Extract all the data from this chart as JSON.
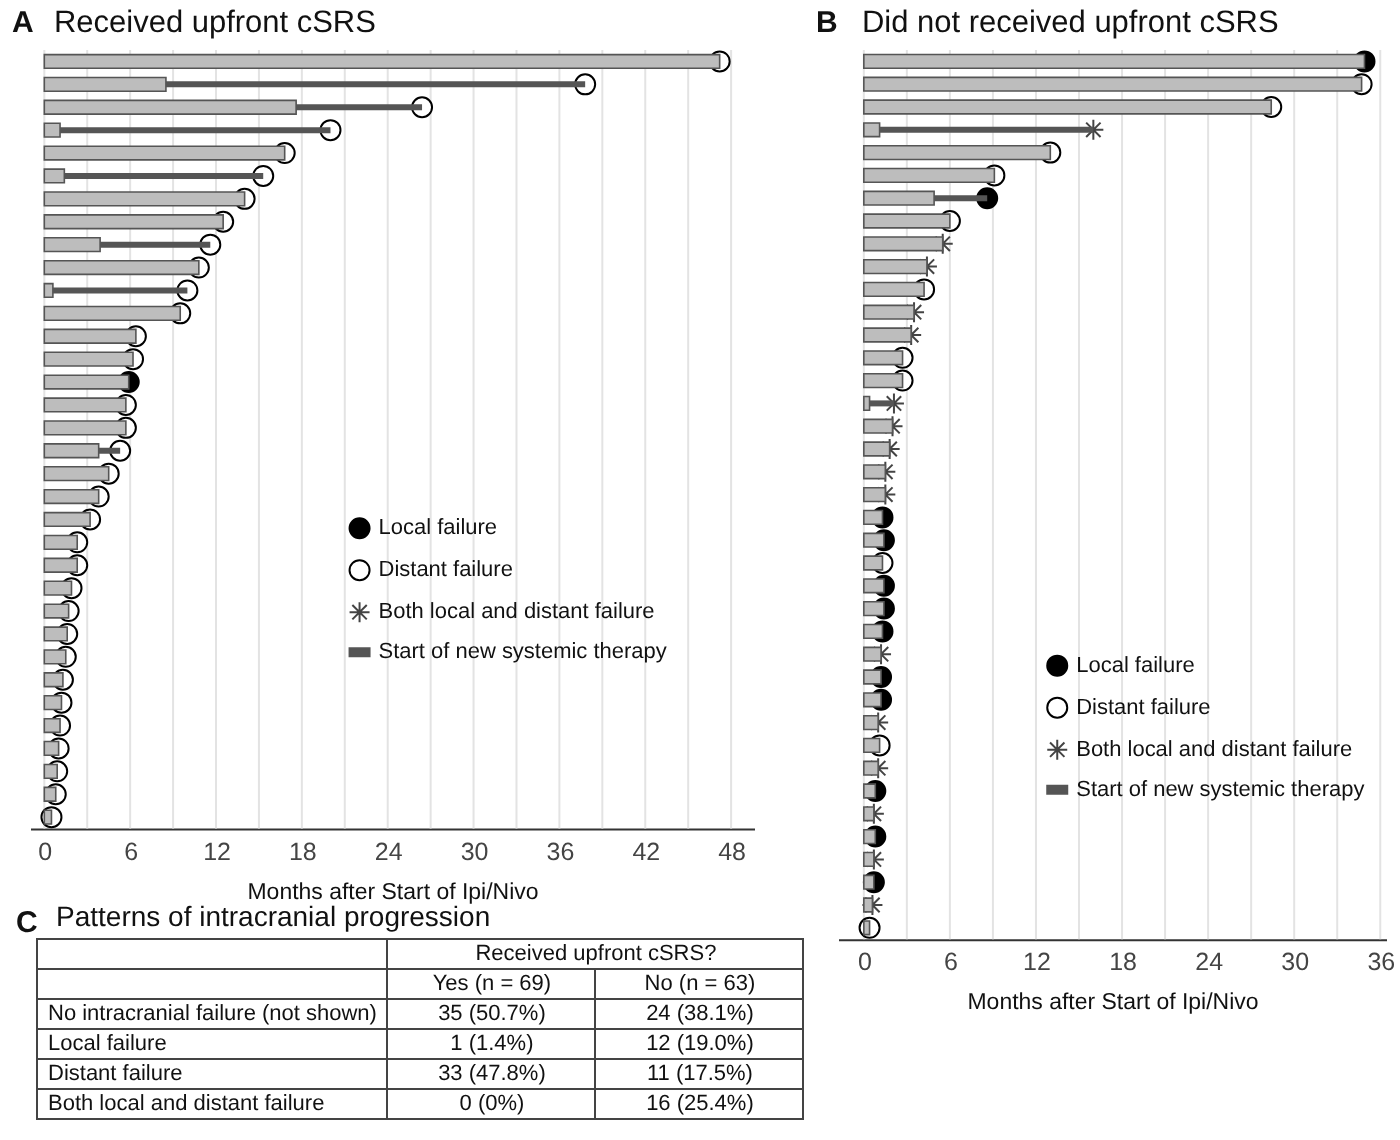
{
  "chart_data": [
    {
      "type": "bar",
      "orientation": "horizontal",
      "stacked": true,
      "title": "Received upfront cSRS",
      "xlabel": "Months after Start of Ipi/Nivo",
      "annotations": [
        "A"
      ],
      "grid": "x",
      "legend": "right",
      "categories": [
        null,
        null,
        null,
        null,
        null,
        null,
        null,
        null,
        null,
        null,
        null,
        null,
        null,
        null,
        null,
        null,
        null,
        null,
        null,
        null,
        null,
        null,
        null,
        null,
        null,
        null,
        null,
        null,
        null,
        null,
        null,
        null,
        null,
        null
      ],
      "xlim": [
        -1,
        49.6
      ],
      "xticks": [
        0,
        {
          "value": 3,
          "label": null
        },
        6,
        {
          "value": 9,
          "label": null
        },
        12,
        {
          "value": 15,
          "label": null
        },
        18,
        {
          "value": 21,
          "label": null
        },
        24,
        {
          "value": 27,
          "label": null
        },
        30,
        {
          "value": 33,
          "label": null
        },
        36,
        {
          "value": 39,
          "label": null
        },
        42,
        {
          "value": 45,
          "label": null
        },
        48
      ],
      "series": [
        {
          "type": "bar",
          "color": "#bdbdbd",
          "values": [
            47.2,
            8.5,
            17.6,
            1.1,
            16.8,
            1.4,
            14.0,
            12.5,
            3.9,
            10.8,
            0.6,
            9.5,
            6.4,
            6.2,
            5.9,
            5.7,
            5.7,
            3.8,
            4.5,
            3.8,
            3.2,
            2.3,
            2.3,
            1.9,
            1.7,
            1.6,
            1.5,
            1.3,
            1.2,
            1.1,
            1.0,
            0.9,
            0.8,
            0.5
          ]
        },
        {
          "type": "scatter",
          "name": "Local failure",
          "color": "#000000",
          "marker": "circle",
          "values": [
            null,
            null,
            null,
            null,
            null,
            null,
            null,
            null,
            null,
            null,
            null,
            null,
            null,
            null,
            5.9,
            null,
            null,
            null,
            null,
            null,
            null,
            null,
            null,
            null,
            null,
            null,
            null,
            null,
            null,
            null,
            null,
            null,
            null,
            null
          ]
        },
        {
          "type": "scatter",
          "name": "Distant failure",
          "color": "#ffffff",
          "marker": "circle",
          "values": [
            47.2,
            37.8,
            26.4,
            20.0,
            16.8,
            15.3,
            14.0,
            12.5,
            11.6,
            10.8,
            10.0,
            9.5,
            6.4,
            6.2,
            null,
            5.7,
            5.7,
            5.3,
            4.5,
            3.8,
            3.2,
            2.3,
            2.3,
            1.9,
            1.7,
            1.6,
            1.5,
            1.3,
            1.2,
            1.1,
            1.0,
            0.9,
            0.8,
            0.5
          ]
        },
        {
          "type": "scatter",
          "name": "Both local and distant failure",
          "color": "#444444",
          "marker": "cross",
          "values": [
            null,
            null,
            null,
            null,
            null,
            null,
            null,
            null,
            null,
            null,
            null,
            null,
            null,
            null,
            null,
            null,
            null,
            null,
            null,
            null,
            null,
            null,
            null,
            null,
            null,
            null,
            null,
            null,
            null,
            null,
            null,
            null,
            null,
            null
          ]
        },
        {
          "type": "bar",
          "name": "Start of new systemic therapy",
          "color": "#555555",
          "values": [
            null,
            29.3,
            8.8,
            18.9,
            null,
            13.9,
            null,
            null,
            7.7,
            null,
            9.4,
            null,
            null,
            null,
            null,
            null,
            null,
            1.5,
            null,
            null,
            null,
            null,
            null,
            null,
            null,
            null,
            null,
            null,
            null,
            null,
            null,
            null,
            null,
            null
          ]
        }
      ]
    },
    {
      "type": "bar",
      "orientation": "horizontal",
      "stacked": true,
      "title": "Did not received upfront cSRS",
      "xlabel": "Months after Start of Ipi/Nivo",
      "annotations": [
        "B"
      ],
      "grid": "x",
      "legend": "bottom right",
      "categories": [
        null,
        null,
        null,
        null,
        null,
        null,
        null,
        null,
        null,
        null,
        null,
        null,
        null,
        null,
        null,
        null,
        null,
        null,
        null,
        null,
        null,
        null,
        null,
        null,
        null,
        null,
        null,
        null,
        null,
        null,
        null,
        null,
        null,
        null,
        null,
        null,
        null,
        null,
        null
      ],
      "xlim": [
        -1.8,
        36.4
      ],
      "xticks": [
        0,
        {
          "value": 3,
          "label": null
        },
        6,
        {
          "value": 9,
          "label": null
        },
        12,
        {
          "value": 15,
          "label": null
        },
        18,
        {
          "value": 21,
          "label": null
        },
        24,
        {
          "value": 27,
          "label": null
        },
        30,
        {
          "value": 33,
          "label": null
        },
        36
      ],
      "series": [
        {
          "type": "bar",
          "color": "#bdbdbd",
          "values": [
            34.9,
            34.7,
            28.4,
            1.1,
            13.0,
            9.1,
            4.9,
            6.0,
            5.5,
            4.4,
            4.2,
            3.5,
            3.3,
            2.7,
            2.7,
            0.4,
            2.0,
            1.8,
            1.5,
            1.5,
            1.3,
            1.4,
            1.3,
            1.4,
            1.4,
            1.3,
            1.2,
            1.2,
            1.2,
            1.0,
            1.1,
            1.0,
            0.8,
            0.7,
            0.8,
            0.7,
            0.7,
            0.6,
            0.4
          ]
        },
        {
          "type": "scatter",
          "name": "Local failure",
          "color": "#000000",
          "marker": "circle",
          "values": [
            34.9,
            null,
            null,
            null,
            null,
            null,
            8.6,
            null,
            null,
            null,
            null,
            null,
            null,
            null,
            null,
            null,
            null,
            null,
            null,
            null,
            1.3,
            1.4,
            null,
            1.4,
            1.4,
            1.3,
            null,
            1.2,
            1.2,
            null,
            null,
            null,
            0.8,
            null,
            0.8,
            null,
            0.7,
            null,
            null
          ]
        },
        {
          "type": "scatter",
          "name": "Distant failure",
          "color": "#ffffff",
          "marker": "circle",
          "values": [
            null,
            34.7,
            28.4,
            null,
            13.0,
            9.1,
            null,
            6.0,
            null,
            null,
            4.2,
            null,
            null,
            2.7,
            2.7,
            null,
            null,
            null,
            null,
            null,
            null,
            null,
            1.3,
            null,
            null,
            null,
            null,
            null,
            null,
            null,
            1.1,
            null,
            null,
            null,
            null,
            null,
            null,
            null,
            0.4
          ]
        },
        {
          "type": "scatter",
          "name": "Both local and distant failure",
          "color": "#444444",
          "marker": "cross",
          "values": [
            null,
            null,
            null,
            16.0,
            null,
            null,
            null,
            null,
            5.5,
            4.4,
            null,
            3.5,
            3.3,
            null,
            null,
            2.1,
            2.0,
            1.8,
            1.5,
            1.5,
            null,
            null,
            null,
            null,
            null,
            null,
            1.2,
            null,
            null,
            1.0,
            null,
            1.0,
            null,
            0.7,
            null,
            0.7,
            null,
            0.6,
            null
          ]
        },
        {
          "type": "bar",
          "name": "Start of new systemic therapy",
          "color": "#555555",
          "values": [
            null,
            null,
            null,
            14.9,
            null,
            null,
            3.7,
            null,
            null,
            null,
            null,
            null,
            null,
            null,
            null,
            1.7,
            null,
            null,
            null,
            null,
            null,
            null,
            null,
            null,
            null,
            null,
            null,
            null,
            null,
            null,
            null,
            null,
            null,
            null,
            null,
            null,
            null,
            null,
            null
          ]
        }
      ]
    },
    {
      "type": "other",
      "title": "Patterns of intracranial progression",
      "annotations": [
        "C"
      ],
      "xlabel": "Received upfront cSRS?",
      "categories": [
        "Yes (n = 69)",
        "No (n = 63)"
      ],
      "y_categories": [
        "No intracranial failure (not shown)",
        "Local failure",
        "Distant failure",
        "Both local and distant failure"
      ],
      "cell_labels": [
        [
          "35 (50.7%)",
          "24 (38.1%)"
        ],
        [
          "1 (1.4%)",
          "12 (19.0%)"
        ],
        [
          "33 (47.8%)",
          "11 (17.5%)"
        ],
        [
          "0 (0%)",
          "16 (25.4%)"
        ]
      ]
    }
  ]
}
